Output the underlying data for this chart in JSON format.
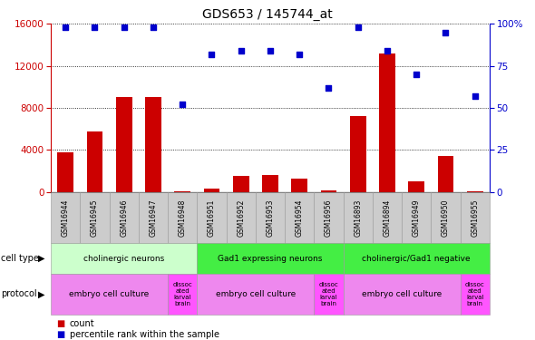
{
  "title": "GDS653 / 145744_at",
  "samples": [
    "GSM16944",
    "GSM16945",
    "GSM16946",
    "GSM16947",
    "GSM16948",
    "GSM16951",
    "GSM16952",
    "GSM16953",
    "GSM16954",
    "GSM16956",
    "GSM16893",
    "GSM16894",
    "GSM16949",
    "GSM16950",
    "GSM16955"
  ],
  "counts": [
    3800,
    5800,
    9000,
    9000,
    100,
    300,
    1500,
    1600,
    1300,
    200,
    7200,
    13200,
    1000,
    3400,
    100
  ],
  "percentiles": [
    98,
    98,
    98,
    98,
    52,
    82,
    84,
    84,
    82,
    62,
    98,
    84,
    70,
    95,
    57
  ],
  "ylim_left": [
    0,
    16000
  ],
  "ylim_right": [
    0,
    100
  ],
  "yticks_left": [
    0,
    4000,
    8000,
    12000,
    16000
  ],
  "yticks_right": [
    0,
    25,
    50,
    75,
    100
  ],
  "bar_color": "#cc0000",
  "dot_color": "#0000cc",
  "cell_groups": [
    {
      "label": "cholinergic neurons",
      "start": 0,
      "end": 5,
      "color": "#ccffcc"
    },
    {
      "label": "Gad1 expressing neurons",
      "start": 5,
      "end": 10,
      "color": "#44ee44"
    },
    {
      "label": "cholinergic/Gad1 negative",
      "start": 10,
      "end": 15,
      "color": "#44ee44"
    }
  ],
  "prot_groups": [
    {
      "label": "embryo cell culture",
      "start": 0,
      "end": 4,
      "color": "#ee88ee"
    },
    {
      "label": "dissoc\nated\nlarval\nbrain",
      "start": 4,
      "end": 5,
      "color": "#ff55ff"
    },
    {
      "label": "embryo cell culture",
      "start": 5,
      "end": 9,
      "color": "#ee88ee"
    },
    {
      "label": "dissoc\nated\nlarval\nbrain",
      "start": 9,
      "end": 10,
      "color": "#ff55ff"
    },
    {
      "label": "embryo cell culture",
      "start": 10,
      "end": 14,
      "color": "#ee88ee"
    },
    {
      "label": "dissoc\nated\nlarval\nbrain",
      "start": 14,
      "end": 15,
      "color": "#ff55ff"
    }
  ],
  "left_axis_color": "#cc0000",
  "right_axis_color": "#0000cc",
  "grid_color": "#000000"
}
